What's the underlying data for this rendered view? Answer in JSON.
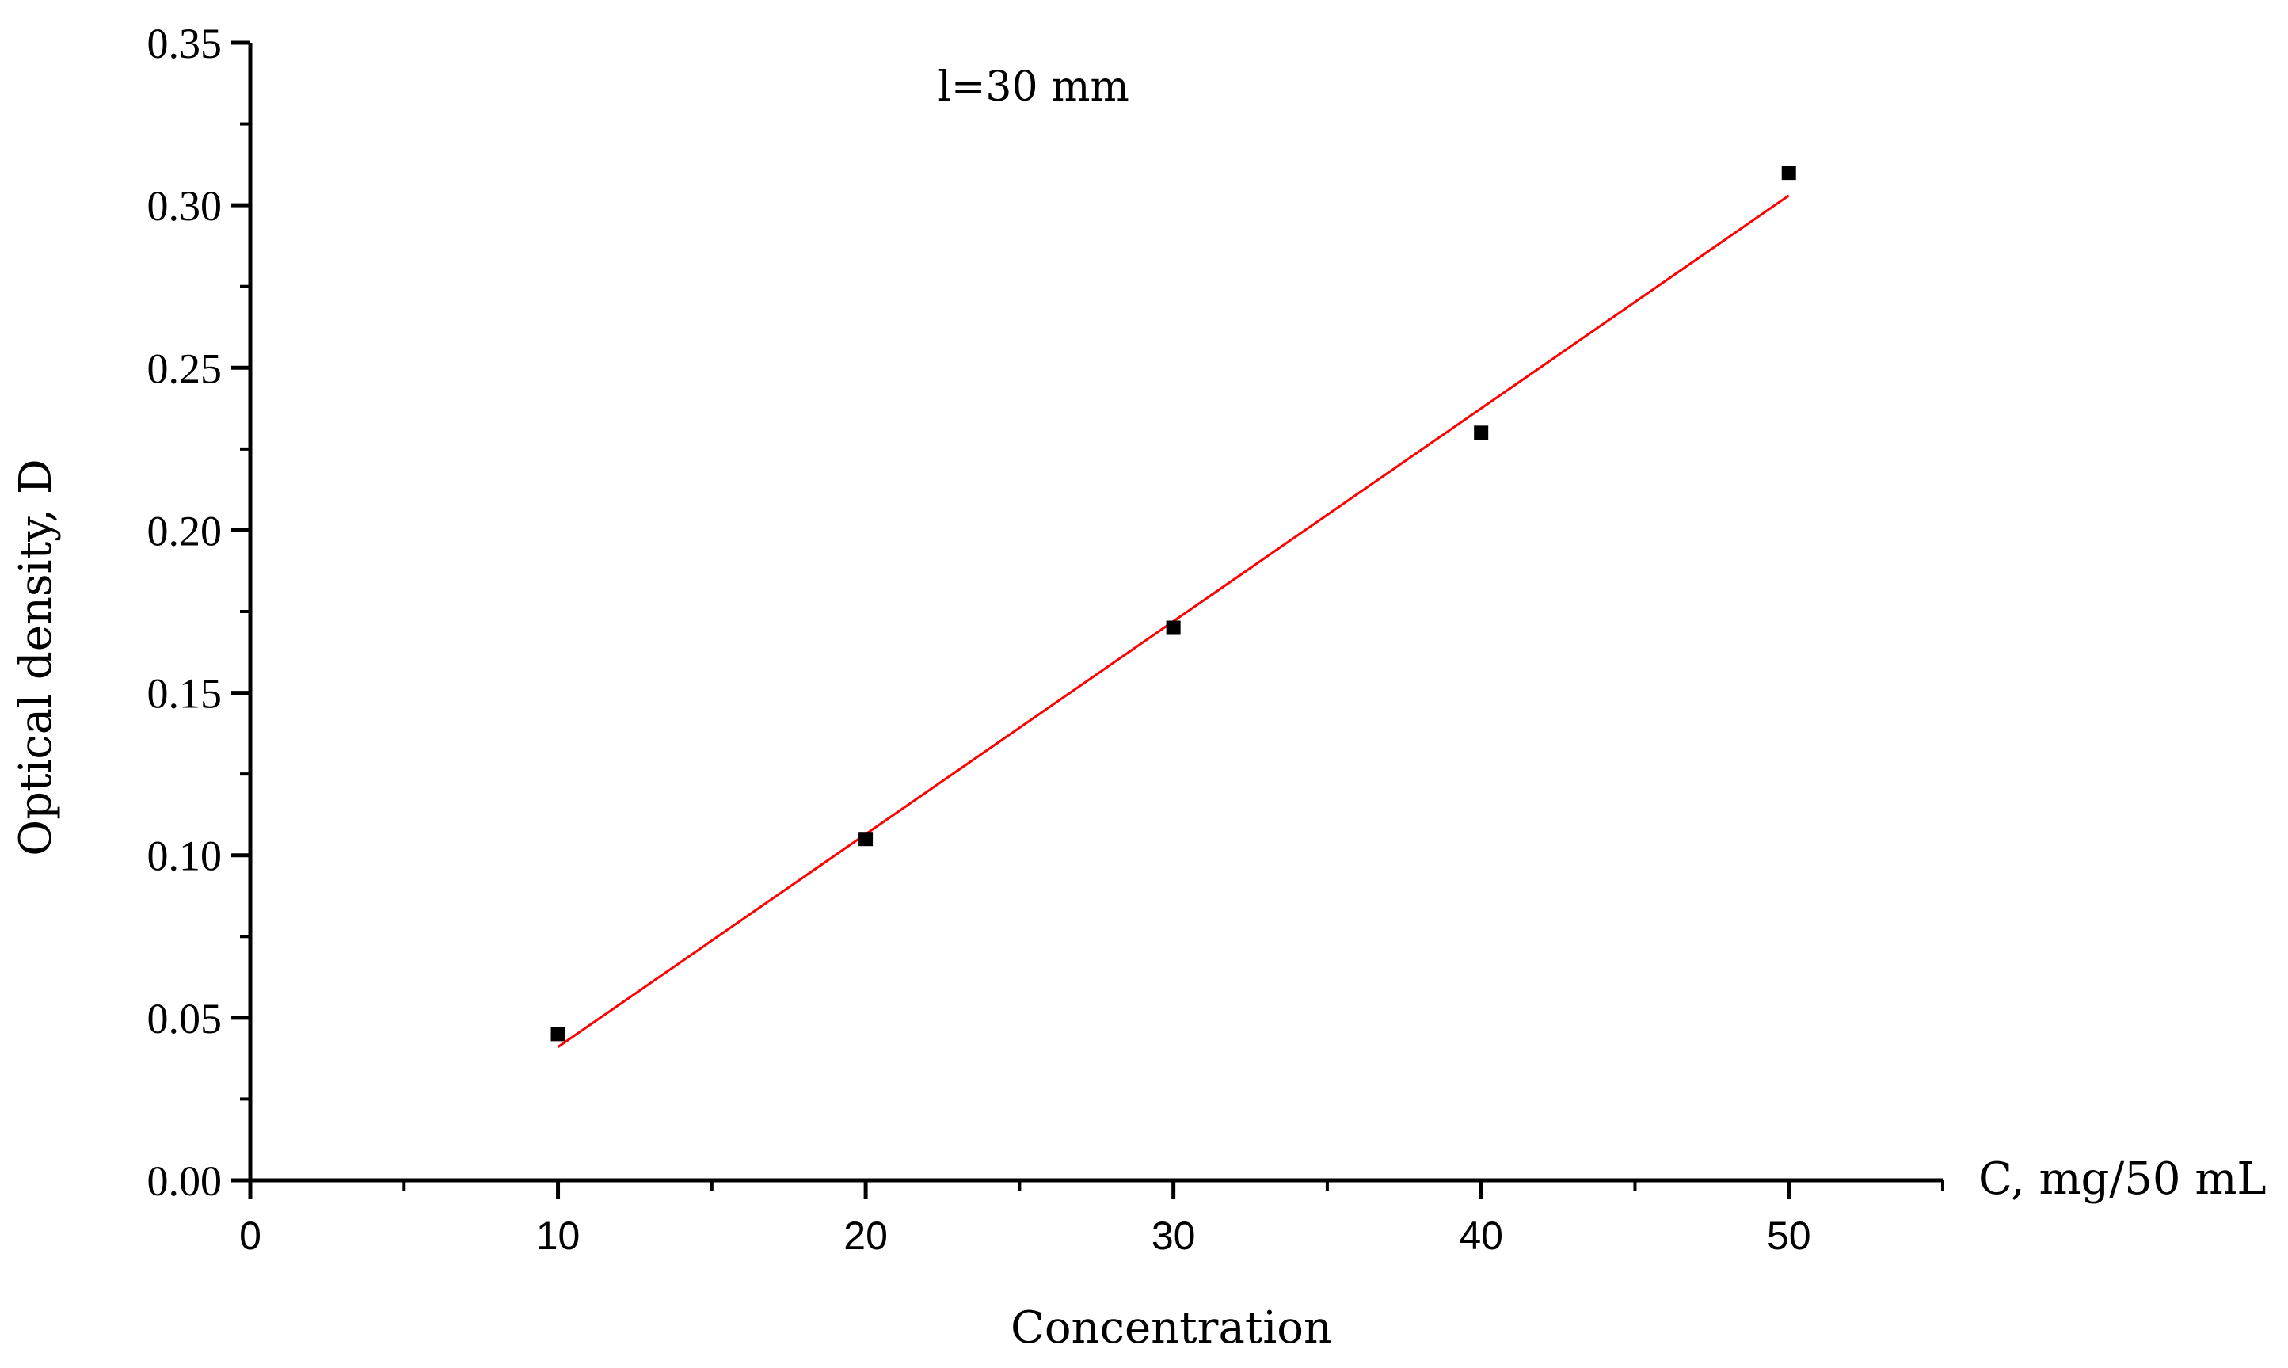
{
  "chart_data": {
    "type": "scatter",
    "annotation": "l=30 mm",
    "xlabel": "Concentration",
    "x_axis_end_label": "C, mg/50 mL",
    "ylabel": "Optical density, D",
    "xlim": [
      0,
      55
    ],
    "ylim": [
      0,
      0.35
    ],
    "x_ticks": [
      "0",
      "10",
      "20",
      "30",
      "40",
      "50"
    ],
    "y_ticks": [
      "0.00",
      "0.05",
      "0.10",
      "0.15",
      "0.20",
      "0.25",
      "0.30",
      "0.35"
    ],
    "grid": false,
    "series": [
      {
        "points": [
          {
            "x": 10,
            "y": 0.045
          },
          {
            "x": 20,
            "y": 0.105
          },
          {
            "x": 30,
            "y": 0.17
          },
          {
            "x": 40,
            "y": 0.23
          },
          {
            "x": 50,
            "y": 0.31
          }
        ],
        "marker": "square",
        "color": "#000000"
      }
    ],
    "fit_line": {
      "x": [
        10,
        50
      ],
      "y": [
        0.041,
        0.303
      ],
      "color": "#ff0000"
    }
  }
}
